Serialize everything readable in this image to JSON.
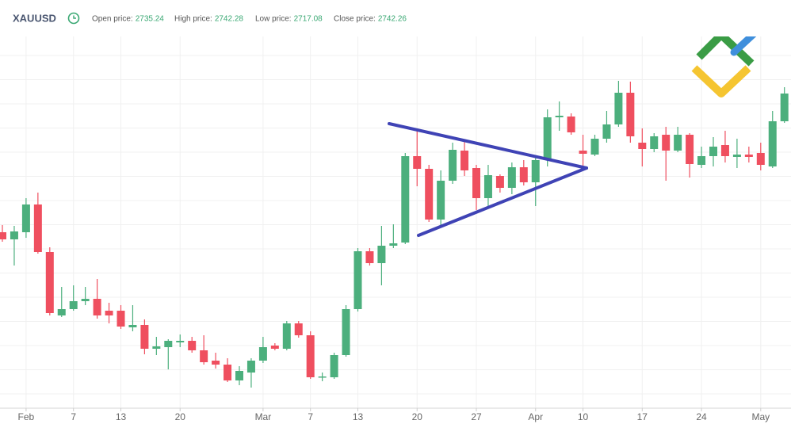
{
  "header": {
    "symbol": "XAUUSD",
    "stats": [
      {
        "label": "Open price:",
        "value": 2735.24
      },
      {
        "label": "High price:",
        "value": 2742.28
      },
      {
        "label": "Low price:",
        "value": 2717.08
      },
      {
        "label": "Close price:",
        "value": 2742.26
      }
    ]
  },
  "chart_data": {
    "type": "candlestick",
    "categories": [
      null,
      null,
      "Feb",
      null,
      null,
      null,
      "7",
      null,
      null,
      null,
      "13",
      null,
      null,
      null,
      null,
      "20",
      null,
      null,
      null,
      null,
      null,
      null,
      "Mar",
      null,
      null,
      null,
      "7",
      null,
      null,
      null,
      "13",
      null,
      null,
      null,
      null,
      "20",
      null,
      null,
      null,
      null,
      "27",
      null,
      null,
      null,
      null,
      "Apr",
      null,
      null,
      null,
      "10",
      null,
      null,
      null,
      null,
      "17",
      null,
      null,
      null,
      null,
      "24",
      null,
      null,
      null,
      null,
      "May",
      null,
      null
    ],
    "open": [
      2707.4,
      2705.6,
      2707.4,
      2714.4,
      2702.4,
      2686.4,
      2688.0,
      2690.0,
      2690.6,
      2687.6,
      2687.6,
      2683.4,
      2684.0,
      2678.0,
      2678.4,
      2679.6,
      2680.0,
      2677.6,
      2675.0,
      2674.0,
      2670.0,
      2672.0,
      2675.0,
      2678.8,
      2678.0,
      2684.4,
      2681.4,
      2670.8,
      2670.8,
      2676.4,
      2688.0,
      2702.6,
      2699.6,
      2704.0,
      2704.8,
      2726.6,
      2723.4,
      2710.6,
      2720.4,
      2728.0,
      2723.6,
      2716.0,
      2721.6,
      2718.6,
      2723.8,
      2720.0,
      2725.6,
      2736.4,
      2736.6,
      2728.0,
      2727.0,
      2731.0,
      2734.6,
      2742.6,
      2730.0,
      2728.4,
      2732.0,
      2728.0,
      2732.0,
      2724.4,
      2726.6,
      2729.4,
      2726.4,
      2727.0,
      2727.4,
      2724.0,
      2735.4
    ],
    "high": [
      2709.2,
      2709.0,
      2716.0,
      2717.4,
      2703.6,
      2693.6,
      2694.0,
      2693.6,
      2695.6,
      2689.6,
      2689.0,
      2689.0,
      2685.4,
      2681.0,
      2680.4,
      2681.6,
      2681.0,
      2681.4,
      2677.0,
      2675.6,
      2673.6,
      2675.6,
      2681.0,
      2679.4,
      2685.0,
      2685.0,
      2682.4,
      2672.0,
      2677.0,
      2689.0,
      2703.4,
      2703.4,
      2709.0,
      2709.4,
      2727.4,
      2733.4,
      2724.4,
      2723.0,
      2730.0,
      2730.4,
      2724.4,
      2724.4,
      2722.0,
      2725.0,
      2725.6,
      2726.4,
      2738.4,
      2740.4,
      2737.4,
      2732.0,
      2732.0,
      2738.0,
      2745.6,
      2745.4,
      2733.6,
      2732.4,
      2734.0,
      2734.0,
      2732.4,
      2729.0,
      2731.4,
      2733.0,
      2731.0,
      2729.0,
      2730.0,
      2738.0,
      2744.0
    ],
    "low": [
      2705.0,
      2699.0,
      2706.0,
      2702.0,
      2686.4,
      2686.0,
      2687.6,
      2689.0,
      2685.6,
      2684.4,
      2683.0,
      2682.4,
      2676.6,
      2676.4,
      2672.8,
      2678.4,
      2677.0,
      2674.0,
      2673.0,
      2669.6,
      2668.8,
      2668.2,
      2674.4,
      2677.6,
      2677.6,
      2680.8,
      2670.4,
      2669.8,
      2670.4,
      2676.0,
      2687.4,
      2699.0,
      2694.0,
      2703.4,
      2704.4,
      2719.0,
      2710.0,
      2708.6,
      2719.6,
      2721.6,
      2713.0,
      2713.6,
      2717.4,
      2717.0,
      2719.2,
      2714.0,
      2724.0,
      2733.0,
      2732.0,
      2724.0,
      2726.6,
      2730.0,
      2734.0,
      2730.0,
      2724.0,
      2727.6,
      2720.4,
      2727.6,
      2721.2,
      2723.6,
      2724.0,
      2725.0,
      2723.6,
      2725.0,
      2723.0,
      2723.6,
      2735.0
    ],
    "close": [
      2705.6,
      2707.6,
      2714.4,
      2702.4,
      2687.0,
      2688.0,
      2690.0,
      2690.6,
      2686.4,
      2686.4,
      2683.6,
      2684.0,
      2678.0,
      2678.6,
      2680.0,
      2680.0,
      2677.6,
      2674.6,
      2674.0,
      2670.0,
      2672.4,
      2675.0,
      2678.4,
      2678.0,
      2684.4,
      2681.4,
      2670.8,
      2671.0,
      2676.4,
      2688.0,
      2702.6,
      2699.6,
      2704.0,
      2704.6,
      2726.6,
      2723.4,
      2710.6,
      2720.4,
      2728.2,
      2723.0,
      2716.0,
      2721.8,
      2718.6,
      2723.8,
      2720.0,
      2725.6,
      2736.4,
      2736.8,
      2732.6,
      2727.2,
      2731.0,
      2734.6,
      2742.6,
      2731.6,
      2728.4,
      2731.6,
      2728.0,
      2732.0,
      2724.6,
      2726.6,
      2729.0,
      2726.6,
      2727.0,
      2726.4,
      2724.4,
      2735.4,
      2742.4
    ],
    "ylim": [
      2663,
      2766
    ],
    "up_color": "#4caf7d",
    "down_color": "#ef4f5f",
    "grid": true
  }
}
